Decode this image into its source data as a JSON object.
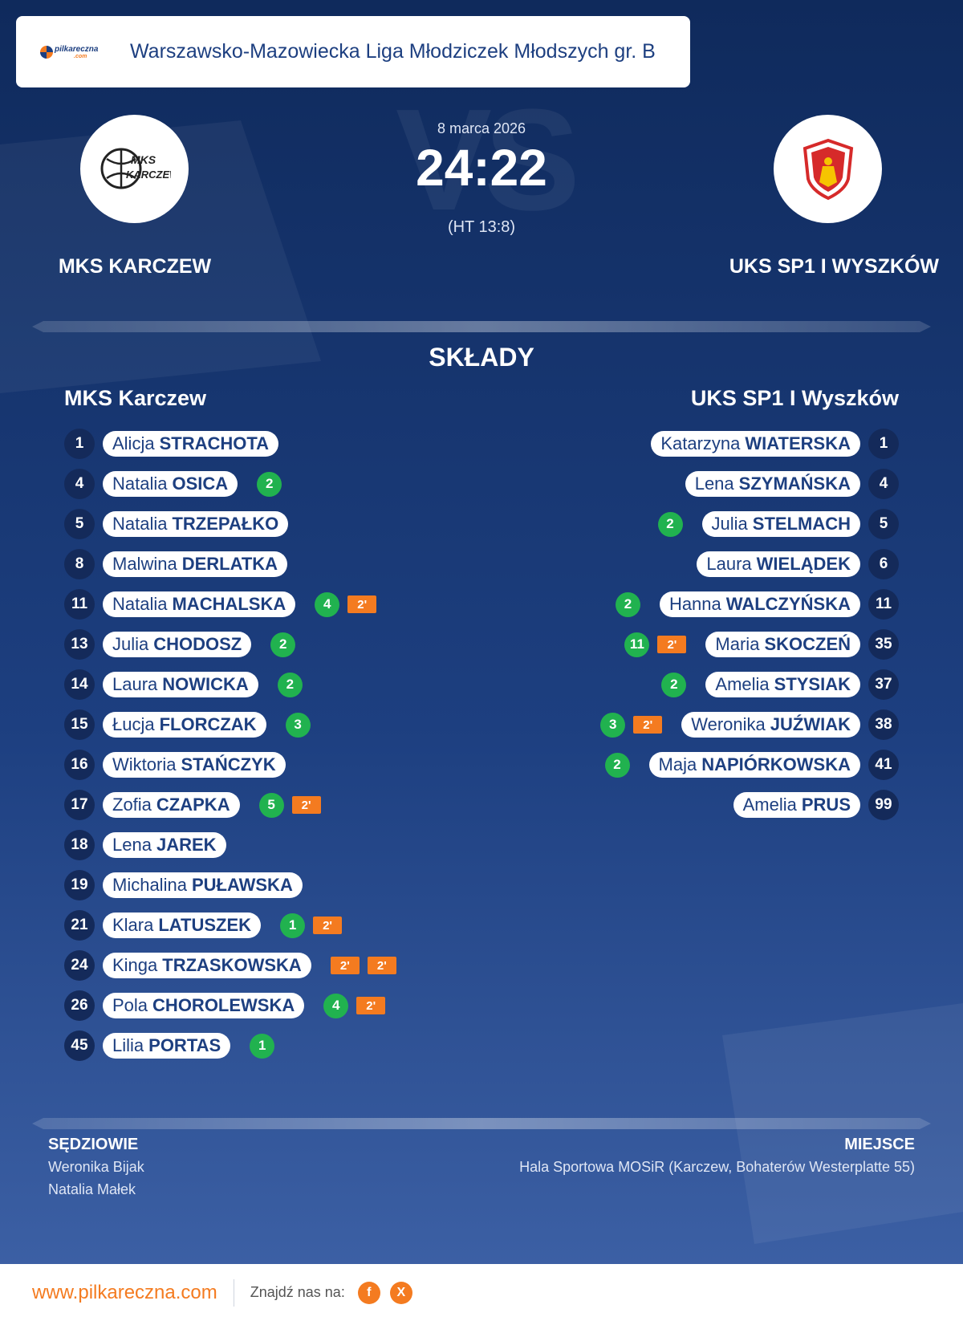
{
  "header": {
    "logo_text": "pilkareczna",
    "logo_sub": ".com",
    "league": "Warszawsko-Mazowiecka Liga Młodziczek Młodszych gr. B"
  },
  "match": {
    "date": "8 marca 2026",
    "score": "24:22",
    "halftime": "(HT 13:8)",
    "watermark": "VS"
  },
  "home": {
    "name_upper": "MKS KARCZEW",
    "name": "MKS Karczew",
    "logo_text_1": "MKS",
    "logo_text_2": "KARCZEW",
    "players": [
      {
        "number": "1",
        "first": "Alicja",
        "last": "STRACHOTA",
        "events": []
      },
      {
        "number": "4",
        "first": "Natalia",
        "last": "OSICA",
        "events": [
          {
            "type": "goal",
            "label": "2"
          }
        ]
      },
      {
        "number": "5",
        "first": "Natalia",
        "last": "TRZEPAŁKO",
        "events": []
      },
      {
        "number": "8",
        "first": "Malwina",
        "last": "DERLATKA",
        "events": []
      },
      {
        "number": "11",
        "first": "Natalia",
        "last": "MACHALSKA",
        "events": [
          {
            "type": "goal",
            "label": "4"
          },
          {
            "type": "susp",
            "label": "2'"
          }
        ]
      },
      {
        "number": "13",
        "first": "Julia",
        "last": "CHODOSZ",
        "events": [
          {
            "type": "goal",
            "label": "2"
          }
        ]
      },
      {
        "number": "14",
        "first": "Laura",
        "last": "NOWICKA",
        "events": [
          {
            "type": "goal",
            "label": "2"
          }
        ]
      },
      {
        "number": "15",
        "first": "Łucja",
        "last": "FLORCZAK",
        "events": [
          {
            "type": "goal",
            "label": "3"
          }
        ]
      },
      {
        "number": "16",
        "first": "Wiktoria",
        "last": "STAŃCZYK",
        "events": []
      },
      {
        "number": "17",
        "first": "Zofia",
        "last": "CZAPKA",
        "events": [
          {
            "type": "goal",
            "label": "5"
          },
          {
            "type": "susp",
            "label": "2'"
          }
        ]
      },
      {
        "number": "18",
        "first": "Lena",
        "last": "JAREK",
        "events": []
      },
      {
        "number": "19",
        "first": "Michalina",
        "last": "PUŁAWSKA",
        "events": []
      },
      {
        "number": "21",
        "first": "Klara",
        "last": "LATUSZEK",
        "events": [
          {
            "type": "goal",
            "label": "1"
          },
          {
            "type": "susp",
            "label": "2'"
          }
        ]
      },
      {
        "number": "24",
        "first": "Kinga",
        "last": "TRZASKOWSKA",
        "events": [
          {
            "type": "susp",
            "label": "2'"
          },
          {
            "type": "susp",
            "label": "2'"
          }
        ]
      },
      {
        "number": "26",
        "first": "Pola",
        "last": "CHOROLEWSKA",
        "events": [
          {
            "type": "goal",
            "label": "4"
          },
          {
            "type": "susp",
            "label": "2'"
          }
        ]
      },
      {
        "number": "45",
        "first": "Lilia",
        "last": "PORTAS",
        "events": [
          {
            "type": "goal",
            "label": "1"
          }
        ]
      }
    ]
  },
  "away": {
    "name_upper": "UKS SP1 I WYSZKÓW",
    "name": "UKS SP1 I Wyszków",
    "players": [
      {
        "number": "1",
        "first": "Katarzyna",
        "last": "WIATERSKA",
        "events": []
      },
      {
        "number": "4",
        "first": "Lena",
        "last": "SZYMAŃSKA",
        "events": []
      },
      {
        "number": "5",
        "first": "Julia",
        "last": "STELMACH",
        "events": [
          {
            "type": "goal",
            "label": "2"
          }
        ]
      },
      {
        "number": "6",
        "first": "Laura",
        "last": "WIELĄDEK",
        "events": []
      },
      {
        "number": "11",
        "first": "Hanna",
        "last": "WALCZYŃSKA",
        "events": [
          {
            "type": "goal",
            "label": "2"
          }
        ]
      },
      {
        "number": "35",
        "first": "Maria",
        "last": "SKOCZEŃ",
        "events": [
          {
            "type": "goal",
            "label": "11"
          },
          {
            "type": "susp",
            "label": "2'"
          }
        ]
      },
      {
        "number": "37",
        "first": "Amelia",
        "last": "STYSIAK",
        "events": [
          {
            "type": "goal",
            "label": "2"
          }
        ]
      },
      {
        "number": "38",
        "first": "Weronika",
        "last": "JUŹWIAK",
        "events": [
          {
            "type": "goal",
            "label": "3"
          },
          {
            "type": "susp",
            "label": "2'"
          }
        ]
      },
      {
        "number": "41",
        "first": "Maja",
        "last": "NAPIÓRKOWSKA",
        "events": [
          {
            "type": "goal",
            "label": "2"
          }
        ]
      },
      {
        "number": "99",
        "first": "Amelia",
        "last": "PRUS",
        "events": []
      }
    ]
  },
  "lineups_title": "SKŁADY",
  "referees": {
    "label": "SĘDZIOWIE",
    "names": [
      "Weronika Bijak",
      "Natalia Małek"
    ]
  },
  "venue": {
    "label": "MIEJSCE",
    "text": "Hala Sportowa MOSiR (Karczew, Bohaterów Westerplatte 55)"
  },
  "footer": {
    "site": "www.pilkareczna.com",
    "find_us": "Znajdź nas na:",
    "social": [
      {
        "icon": "facebook-icon",
        "glyph": "f"
      },
      {
        "icon": "x-icon",
        "glyph": "X"
      }
    ]
  },
  "colors": {
    "accent": "#f47b20",
    "goal": "#21b24f",
    "navy": "#1d3f80"
  }
}
